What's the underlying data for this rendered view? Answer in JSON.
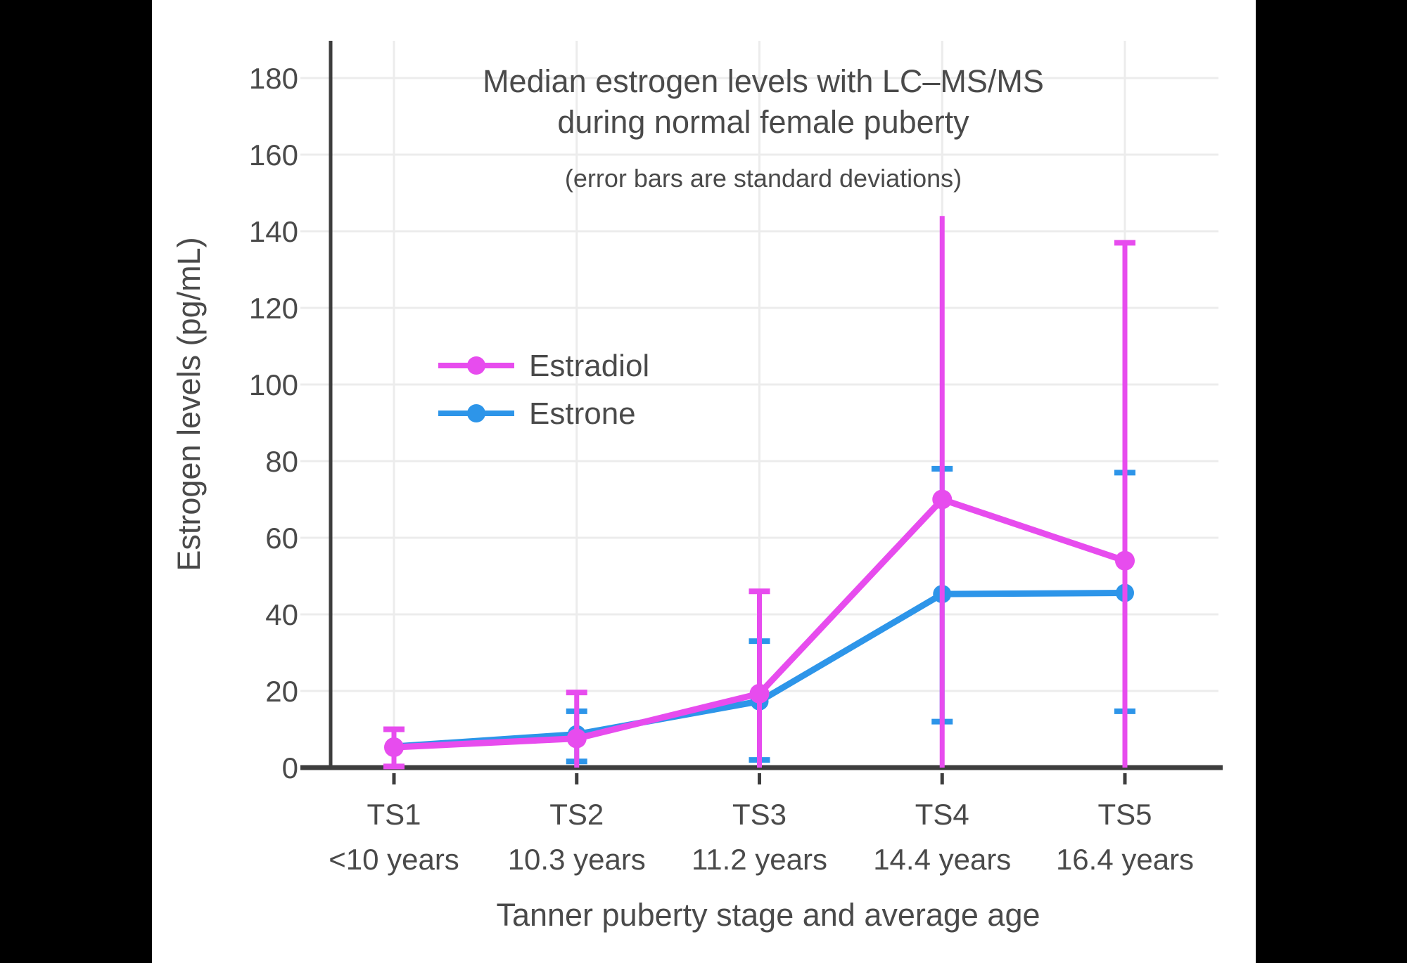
{
  "window": {
    "background": "#000000",
    "canvas_background": "#ffffff"
  },
  "chart_data": {
    "type": "line",
    "title_line1": "Median estrogen levels with LC–MS/MS",
    "title_line2": "during normal female puberty",
    "subtitle": "(error bars are standard deviations)",
    "xlabel": "Tanner puberty stage and average age",
    "ylabel": "Estrogen levels (pg/mL)",
    "y_ticks": [
      0,
      20,
      40,
      60,
      80,
      100,
      120,
      140,
      160,
      180
    ],
    "ylim": [
      0,
      189
    ],
    "grid": true,
    "legend_position": "inside-upper-left",
    "categories": [
      {
        "stage": "TS1",
        "age": "<10 years"
      },
      {
        "stage": "TS2",
        "age": "10.3 years"
      },
      {
        "stage": "TS3",
        "age": "11.2 years"
      },
      {
        "stage": "TS4",
        "age": "14.4 years"
      },
      {
        "stage": "TS5",
        "age": "16.4 years"
      }
    ],
    "series": [
      {
        "name": "Estradiol",
        "color": "#E74CEE",
        "marker": "circle",
        "values": [
          5.3,
          7.6,
          19.3,
          70,
          54
        ],
        "error_bars": [
          {
            "lo": 0.3,
            "hi": 10,
            "cap_lo": true,
            "cap_hi": true
          },
          {
            "lo": 0,
            "hi": 19.6,
            "cap_lo": false,
            "cap_hi": true
          },
          {
            "lo": 0,
            "hi": 46,
            "cap_lo": false,
            "cap_hi": true
          },
          {
            "lo": 0,
            "hi": 144,
            "cap_lo": false,
            "cap_hi": false
          },
          {
            "lo": 0,
            "hi": 137,
            "cap_lo": false,
            "cap_hi": true
          }
        ]
      },
      {
        "name": "Estrone",
        "color": "#2D95E9",
        "marker": "circle",
        "values": [
          5.5,
          8.7,
          17.3,
          45.3,
          45.6
        ],
        "error_bars": [
          null,
          {
            "lo": 1.6,
            "hi": 14.7,
            "cap_lo": true,
            "cap_hi": true
          },
          {
            "lo": 2,
            "hi": 33,
            "cap_lo": true,
            "cap_hi": true
          },
          {
            "lo": 12,
            "hi": 78,
            "cap_lo": true,
            "cap_hi": true
          },
          {
            "lo": 14.7,
            "hi": 77,
            "cap_lo": true,
            "cap_hi": true
          }
        ]
      }
    ],
    "style_colors": {
      "text": "#4A4A4A",
      "axis": "#3D3D3D",
      "gridline": "#ECECEC"
    }
  }
}
